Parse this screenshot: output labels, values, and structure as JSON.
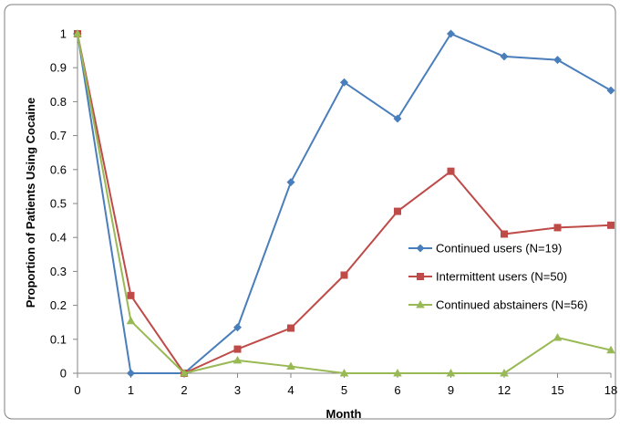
{
  "chart_data": {
    "type": "line",
    "title": "",
    "xlabel": "Month",
    "ylabel": "Proportion of Patients Using Cocaine",
    "categories": [
      "0",
      "1",
      "2",
      "3",
      "4",
      "5",
      "6",
      "9",
      "12",
      "15",
      "18"
    ],
    "ylim": [
      0,
      1
    ],
    "yticks": [
      "0",
      "0.1",
      "0.2",
      "0.3",
      "0.4",
      "0.5",
      "0.6",
      "0.7",
      "0.8",
      "0.9",
      "1"
    ],
    "grid": false,
    "legend_position": "right",
    "series": [
      {
        "name": "Continued users (N=19)",
        "color": "#4a7ebb",
        "marker": "diamond",
        "values": [
          1.0,
          0.0,
          0.0,
          0.135,
          0.563,
          0.857,
          0.75,
          1.0,
          0.933,
          0.923,
          0.833
        ]
      },
      {
        "name": "Intermittent users (N=50)",
        "color": "#be4b48",
        "marker": "square",
        "values": [
          1.0,
          0.229,
          0.0,
          0.071,
          0.133,
          0.289,
          0.477,
          0.595,
          0.41,
          0.429,
          0.436
        ]
      },
      {
        "name": "Continued abstainers (N=56)",
        "color": "#98b954",
        "marker": "triangle",
        "values": [
          1.0,
          0.154,
          0.0,
          0.038,
          0.02,
          0.0,
          0.0,
          0.0,
          0.0,
          0.105,
          0.068
        ]
      }
    ]
  }
}
